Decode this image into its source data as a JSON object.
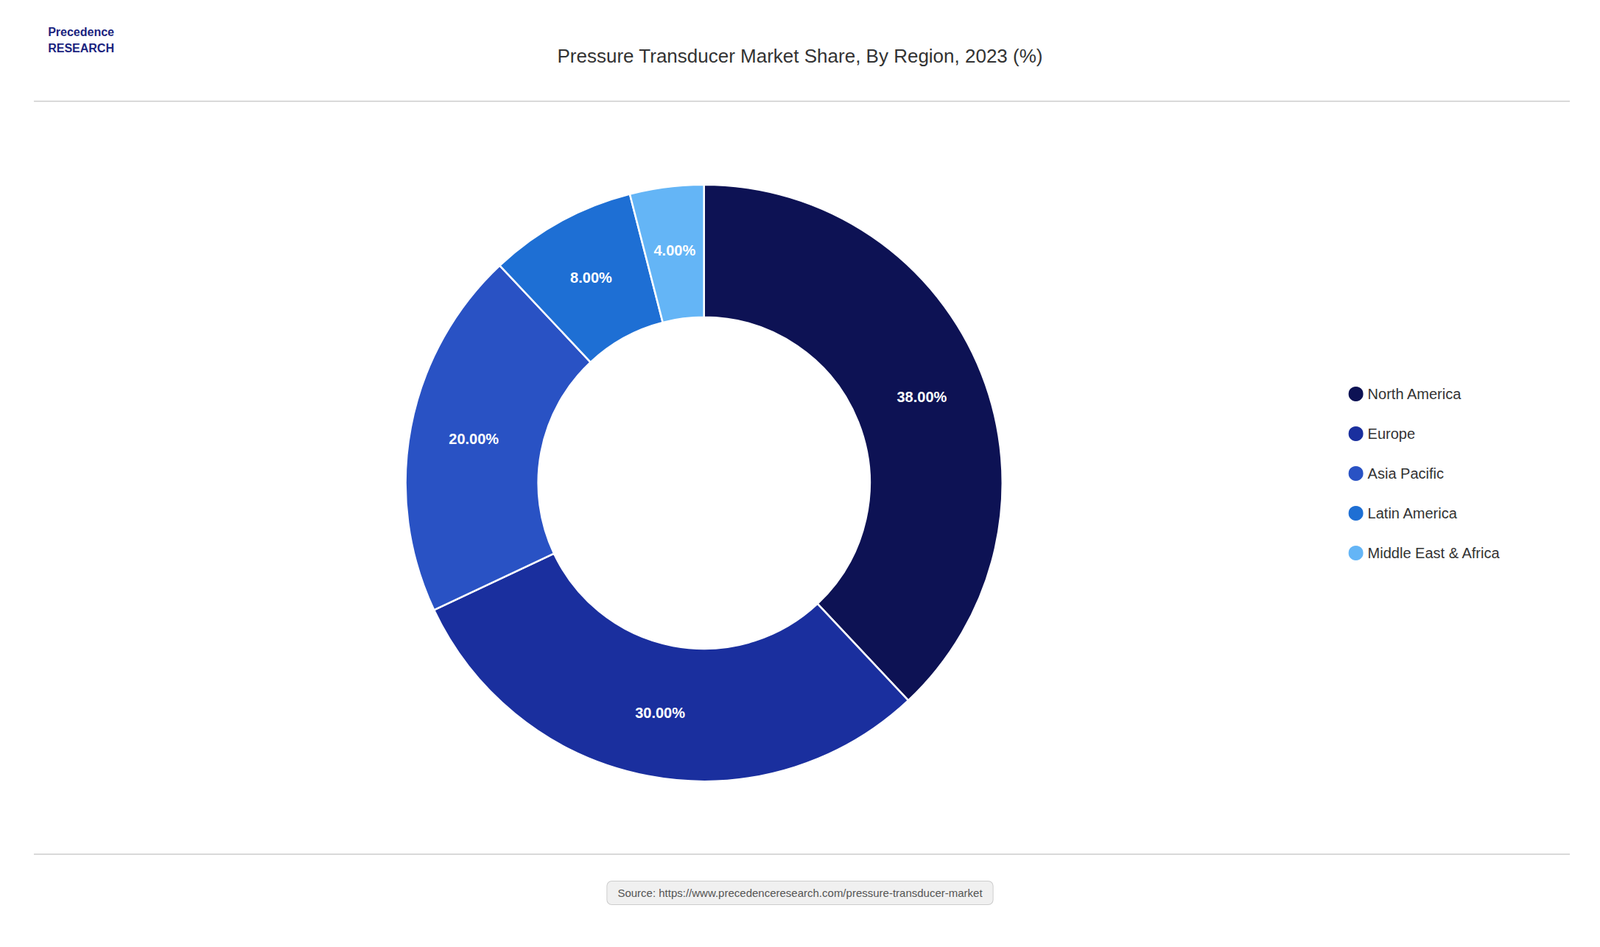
{
  "chart_data": {
    "type": "pie",
    "title": "Pressure Transducer Market Share, By Region, 2023 (%)",
    "categories": [
      "North America",
      "Europe",
      "Asia Pacific",
      "Latin America",
      "Middle East & Africa"
    ],
    "values": [
      38.0,
      30.0,
      20.0,
      8.0,
      4.0
    ],
    "value_labels": [
      "38.00%",
      "30.00%",
      "20.00%",
      "8.00%",
      "4.00%"
    ],
    "colors": [
      "#0d1254",
      "#1a2f9e",
      "#2952c4",
      "#1e6fd4",
      "#64b5f6"
    ],
    "data_labels": true,
    "legend": "right",
    "annotations": [
      "Precedence\nRESEARCH",
      "Source: https://www.precedenceresearch.com/pressure-transducer-market"
    ]
  }
}
